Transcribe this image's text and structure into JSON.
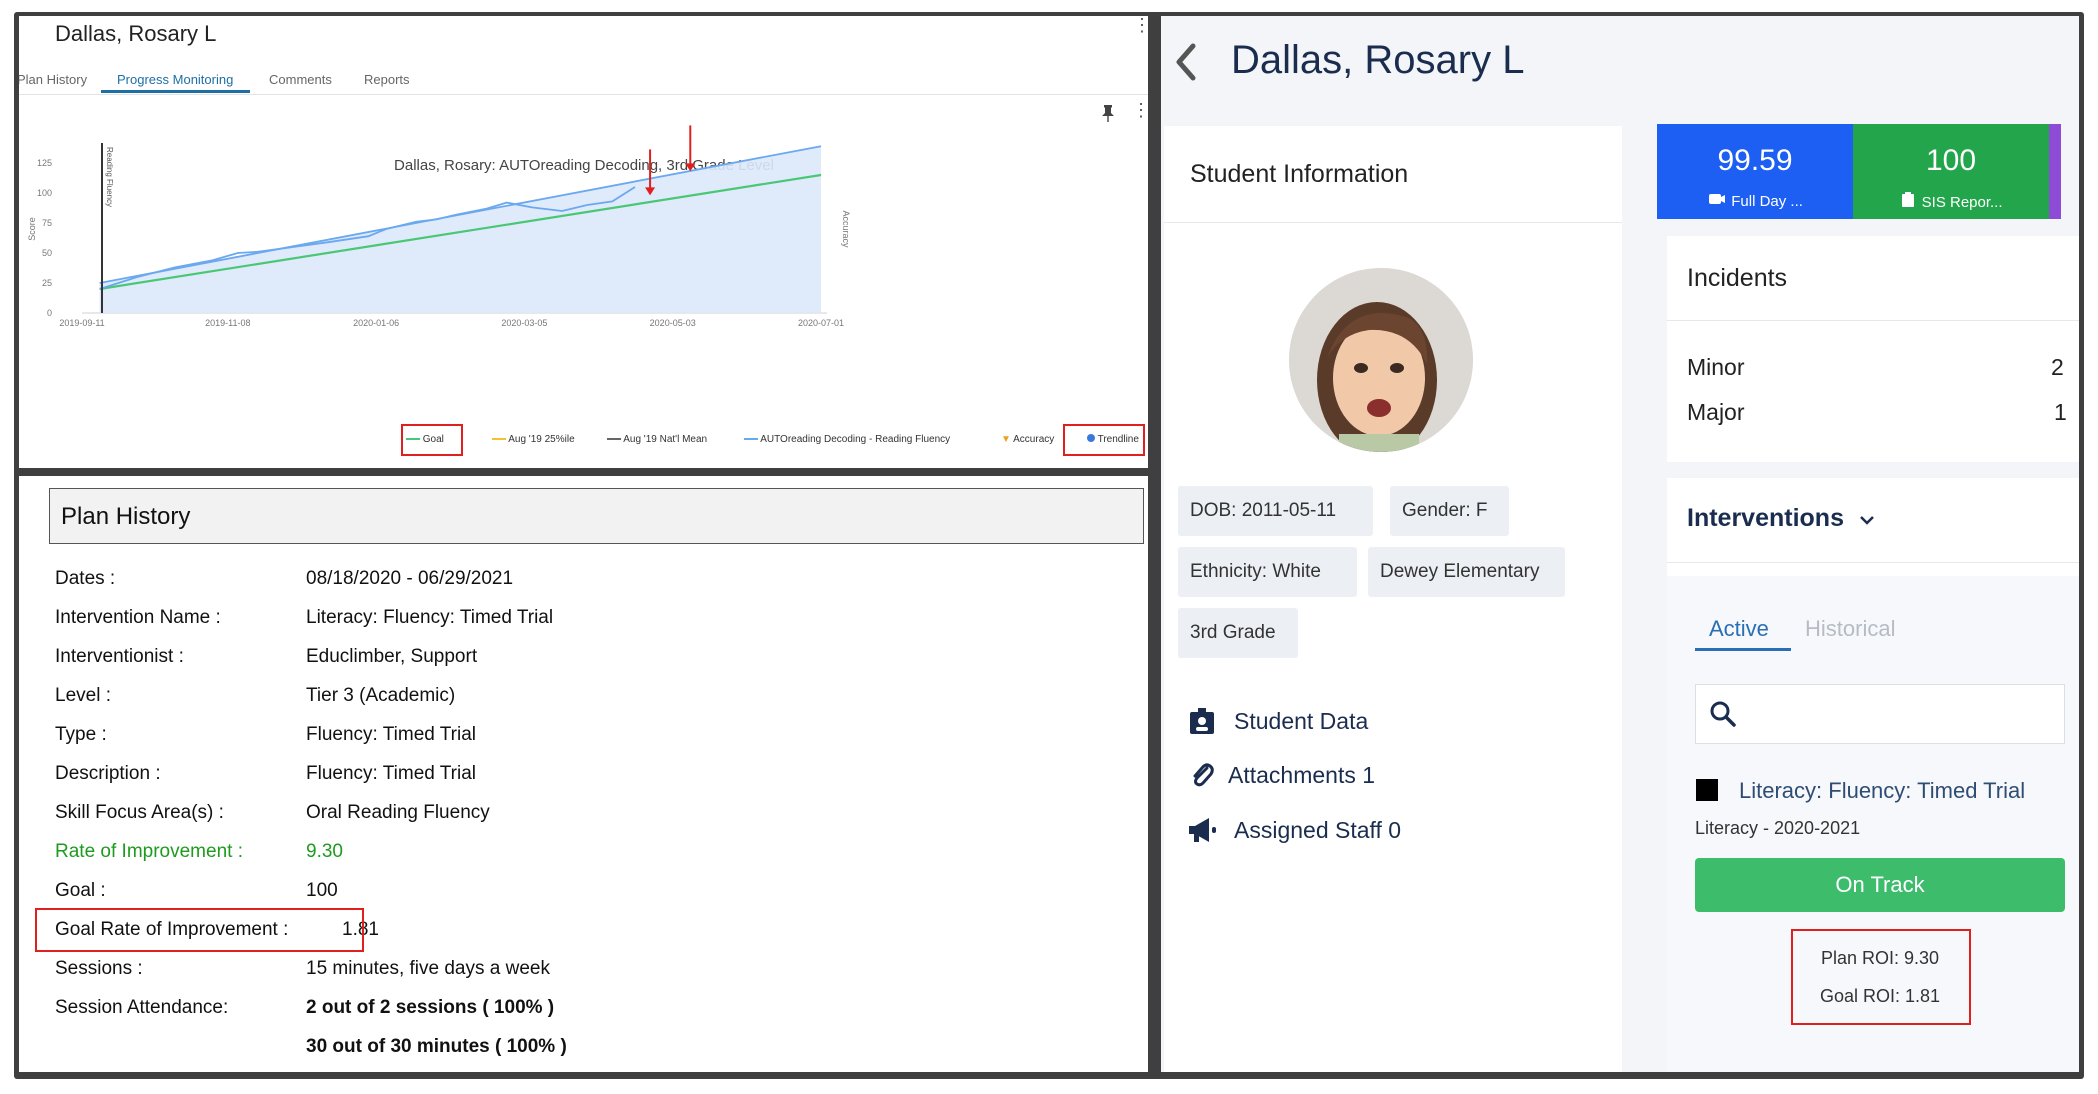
{
  "left_top": {
    "student_name": "Dallas, Rosary L",
    "tabs": [
      "Plan History",
      "Progress Monitoring",
      "Comments",
      "Reports"
    ],
    "active_tab": "Progress Monitoring",
    "legend": [
      "Goal",
      "Aug '19 25%ile",
      "Aug '19 Nat'l Mean",
      "AUTOreading Decoding - Reading Fluency",
      "Accuracy",
      "Trendline"
    ]
  },
  "chart_data": {
    "type": "line",
    "title": "Dallas, Rosary: AUTOreading Decoding, 3rd Grade Level",
    "ylabel": "Score",
    "y2label": "Accuracy",
    "xlabel": "",
    "y_vertical_label": "Reading Fluency",
    "xlim": [
      "2019-09-11",
      "2020-07-01"
    ],
    "ylim": [
      0,
      140
    ],
    "x_ticks": [
      "2019-09-11",
      "2019-11-08",
      "2020-01-06",
      "2020-03-05",
      "2020-05-03",
      "2020-07-01"
    ],
    "y_ticks": [
      0,
      25,
      50,
      75,
      100,
      125
    ],
    "grid": false,
    "legend_position": "bottom-right",
    "colors": {
      "goal": "#48c774",
      "fluency": "#6aa8ef",
      "fill": "#dbe8fb",
      "annotation": "#e0201f"
    },
    "series": [
      {
        "name": "Goal",
        "x": [
          "2019-09-18",
          "2020-07-01"
        ],
        "y": [
          20,
          115
        ]
      },
      {
        "name": "Trendline",
        "x": [
          "2019-09-18",
          "2020-07-01"
        ],
        "y": [
          25,
          139
        ]
      },
      {
        "name": "AUTOreading Decoding - Reading Fluency",
        "x": [
          "2019-09-18",
          "2019-10-03",
          "2019-10-18",
          "2019-11-02",
          "2019-11-12",
          "2019-11-20",
          "2019-12-04",
          "2019-12-18",
          "2020-01-03",
          "2020-01-10",
          "2020-01-22",
          "2020-01-30",
          "2020-02-07",
          "2020-02-19",
          "2020-02-27",
          "2020-03-08",
          "2020-03-20",
          "2020-03-30",
          "2020-04-09",
          "2020-04-18"
        ],
        "y": [
          20,
          30,
          38,
          44,
          50,
          51,
          55,
          59,
          64,
          70,
          76,
          78,
          82,
          87,
          92,
          88,
          85,
          90,
          93,
          105
        ]
      }
    ],
    "annotations": [
      {
        "type": "arrow",
        "x": "2020-04-24",
        "y": 98
      },
      {
        "type": "arrow",
        "x": "2020-05-10",
        "y": 118
      }
    ]
  },
  "plan_history": {
    "title": "Plan History",
    "rows": [
      {
        "label": "Dates :",
        "value": "08/18/2020 - 06/29/2021"
      },
      {
        "label": "Intervention Name :",
        "value": "Literacy: Fluency: Timed Trial"
      },
      {
        "label": "Interventionist :",
        "value": "Educlimber, Support"
      },
      {
        "label": "Level :",
        "value": "Tier 3 (Academic)"
      },
      {
        "label": "Type :",
        "value": "Fluency: Timed Trial"
      },
      {
        "label": "Description :",
        "value": "Fluency: Timed Trial"
      },
      {
        "label": "Skill Focus Area(s) :",
        "value": "Oral Reading Fluency"
      },
      {
        "label": "Rate of Improvement :",
        "value": "9.30"
      },
      {
        "label": "Goal :",
        "value": "100"
      },
      {
        "label": "Goal Rate of Improvement :",
        "value": "1.81"
      },
      {
        "label": "Sessions :",
        "value": "15 minutes, five days a week"
      },
      {
        "label": "Session Attendance:",
        "value": "2 out of 2 sessions ( 100% )"
      },
      {
        "label": "",
        "value": "30 out of 30 minutes ( 100% )"
      }
    ],
    "colors": {
      "rate_highlight": "#1e9b1e",
      "callout": "#e0201f"
    }
  },
  "right": {
    "student_name": "Dallas, Rosary L",
    "student_info_title": "Student Information",
    "chips": [
      "DOB: 2011-05-11",
      "Gender: F",
      "Ethnicity: White",
      "Dewey Elementary",
      "3rd Grade"
    ],
    "links": [
      "Student Data",
      "Attachments 1",
      "Assigned Staff 0"
    ],
    "tiles": [
      {
        "value": "99.59",
        "caption": "Full Day ...",
        "color": "#1d5ff3"
      },
      {
        "value": "100",
        "caption": "SIS Repor...",
        "color": "#22a54b"
      }
    ],
    "incidents": {
      "title": "Incidents",
      "rows": [
        {
          "label": "Minor",
          "count": "2"
        },
        {
          "label": "Major",
          "count": "1"
        }
      ]
    },
    "interventions": {
      "title": "Interventions",
      "tabs": [
        "Active",
        "Historical"
      ],
      "active_tab": "Active",
      "search_value": "",
      "item_name": "Literacy: Fluency: Timed Trial",
      "item_meta": "Literacy - 2020-2021",
      "status": "On Track",
      "status_color": "#3dbd6c",
      "plan_roi": "Plan ROI: 9.30",
      "goal_roi": "Goal ROI: 1.81"
    }
  }
}
